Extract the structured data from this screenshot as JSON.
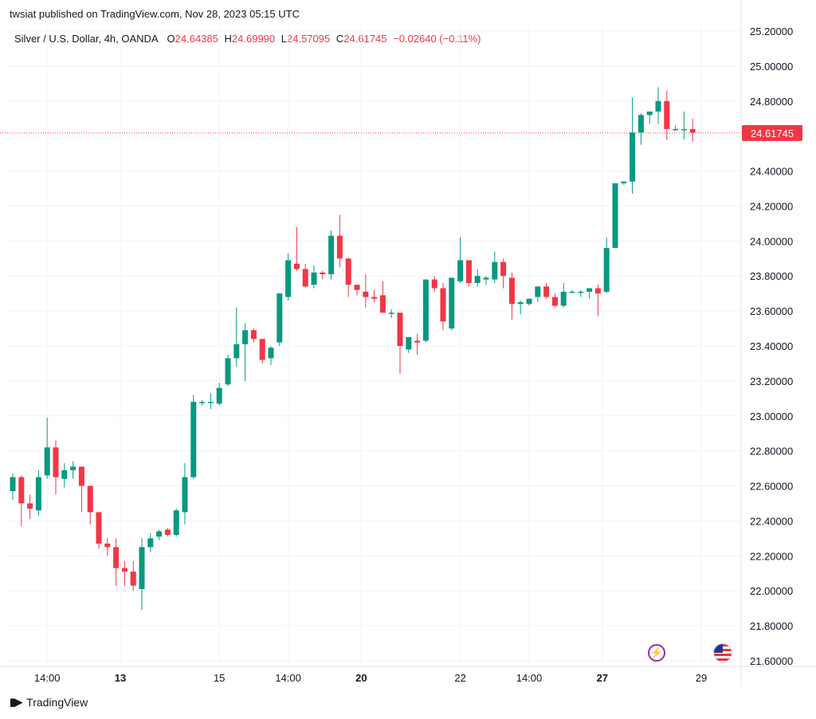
{
  "header": {
    "publisher_line": "twsiat published on TradingView.com, Nov 28, 2023 05:15 UTC"
  },
  "legend": {
    "symbol": "Silver / U.S. Dollar, 4h, OANDA",
    "o_label": "O",
    "o_value": "24.64385",
    "h_label": "H",
    "h_value": "24.69990",
    "l_label": "L",
    "l_value": "24.57095",
    "c_label": "C",
    "c_value": "24.61745",
    "change": "−0.02640 (−0.11%)"
  },
  "last_price": "24.61745",
  "footer": {
    "brand": "TradingView"
  },
  "colors": {
    "up": "#089981",
    "down": "#f23645",
    "grid": "#f0f3fa",
    "text": "#131722"
  },
  "icons": [
    "lightning-icon",
    "us-flag-icon",
    "tradingview-logo-icon"
  ],
  "chart_data": {
    "type": "candlestick",
    "title": "Silver / U.S. Dollar, 4h, OANDA",
    "ylim": [
      21.6,
      25.2
    ],
    "y_ticks": [
      "25.20000",
      "25.00000",
      "24.80000",
      "24.60000",
      "24.40000",
      "24.20000",
      "24.00000",
      "23.80000",
      "23.60000",
      "23.40000",
      "23.20000",
      "23.00000",
      "22.80000",
      "22.60000",
      "22.40000",
      "22.20000",
      "22.00000",
      "21.80000",
      "21.60000"
    ],
    "x_ticks": [
      {
        "label": "14:00",
        "bold": false,
        "index": 4
      },
      {
        "label": "13",
        "bold": true,
        "index": 12.5
      },
      {
        "label": "15",
        "bold": false,
        "index": 24
      },
      {
        "label": "14:00",
        "bold": false,
        "index": 32
      },
      {
        "label": "20",
        "bold": true,
        "index": 40.5
      },
      {
        "label": "22",
        "bold": false,
        "index": 52
      },
      {
        "label": "14:00",
        "bold": false,
        "index": 60
      },
      {
        "label": "27",
        "bold": true,
        "index": 68.5
      },
      {
        "label": "29",
        "bold": false,
        "index": 80
      }
    ],
    "candles": [
      [
        22.57,
        22.67,
        22.52,
        22.65
      ],
      [
        22.65,
        22.66,
        22.37,
        22.5
      ],
      [
        22.5,
        22.55,
        22.41,
        22.47
      ],
      [
        22.46,
        22.69,
        22.43,
        22.65
      ],
      [
        22.66,
        22.99,
        22.64,
        22.82
      ],
      [
        22.82,
        22.86,
        22.55,
        22.65
      ],
      [
        22.64,
        22.73,
        22.59,
        22.69
      ],
      [
        22.69,
        22.74,
        22.64,
        22.71
      ],
      [
        22.71,
        22.71,
        22.45,
        22.6
      ],
      [
        22.6,
        22.6,
        22.38,
        22.45
      ],
      [
        22.45,
        22.45,
        22.24,
        22.27
      ],
      [
        22.27,
        22.3,
        22.2,
        22.25
      ],
      [
        22.25,
        22.3,
        22.03,
        22.13
      ],
      [
        22.13,
        22.17,
        22.03,
        22.11
      ],
      [
        22.11,
        22.17,
        22.0,
        22.03
      ],
      [
        22.01,
        22.3,
        21.89,
        22.25
      ],
      [
        22.25,
        22.33,
        22.22,
        22.3
      ],
      [
        22.31,
        22.35,
        22.29,
        22.34
      ],
      [
        22.35,
        22.36,
        22.31,
        22.32
      ],
      [
        22.32,
        22.47,
        22.31,
        22.46
      ],
      [
        22.45,
        22.73,
        22.38,
        22.65
      ],
      [
        22.65,
        23.12,
        22.64,
        23.08
      ],
      [
        23.08,
        23.09,
        23.06,
        23.08
      ],
      [
        23.08,
        23.13,
        23.04,
        23.08
      ],
      [
        23.07,
        23.19,
        23.06,
        23.16
      ],
      [
        23.18,
        23.35,
        23.17,
        23.33
      ],
      [
        23.33,
        23.62,
        23.28,
        23.41
      ],
      [
        23.41,
        23.53,
        23.2,
        23.49
      ],
      [
        23.49,
        23.5,
        23.42,
        23.44
      ],
      [
        23.44,
        23.44,
        23.3,
        23.32
      ],
      [
        23.33,
        23.4,
        23.29,
        23.39
      ],
      [
        23.42,
        23.7,
        23.4,
        23.7
      ],
      [
        23.68,
        23.93,
        23.66,
        23.89
      ],
      [
        23.87,
        24.08,
        23.83,
        23.84
      ],
      [
        23.84,
        23.87,
        23.73,
        23.74
      ],
      [
        23.75,
        23.86,
        23.73,
        23.82
      ],
      [
        23.82,
        23.83,
        23.78,
        23.81
      ],
      [
        23.81,
        24.06,
        23.78,
        24.03
      ],
      [
        24.03,
        24.15,
        23.85,
        23.9
      ],
      [
        23.9,
        23.9,
        23.68,
        23.75
      ],
      [
        23.75,
        23.75,
        23.69,
        23.72
      ],
      [
        23.71,
        23.81,
        23.62,
        23.68
      ],
      [
        23.68,
        23.72,
        23.65,
        23.67
      ],
      [
        23.69,
        23.77,
        23.59,
        23.59
      ],
      [
        23.59,
        23.61,
        23.56,
        23.59
      ],
      [
        23.59,
        23.59,
        23.24,
        23.4
      ],
      [
        23.38,
        23.42,
        23.36,
        23.45
      ],
      [
        23.43,
        23.47,
        23.35,
        23.42
      ],
      [
        23.43,
        23.78,
        23.42,
        23.78
      ],
      [
        23.78,
        23.8,
        23.71,
        23.73
      ],
      [
        23.73,
        23.76,
        23.49,
        23.54
      ],
      [
        23.5,
        23.79,
        23.49,
        23.79
      ],
      [
        23.77,
        24.02,
        23.76,
        23.89
      ],
      [
        23.89,
        23.89,
        23.74,
        23.76
      ],
      [
        23.76,
        23.84,
        23.74,
        23.8
      ],
      [
        23.78,
        23.8,
        23.75,
        23.79
      ],
      [
        23.78,
        23.94,
        23.76,
        23.88
      ],
      [
        23.88,
        23.9,
        23.73,
        23.8
      ],
      [
        23.79,
        23.82,
        23.55,
        23.64
      ],
      [
        23.64,
        23.66,
        23.58,
        23.65
      ],
      [
        23.64,
        23.67,
        23.63,
        23.67
      ],
      [
        23.68,
        23.74,
        23.65,
        23.74
      ],
      [
        23.74,
        23.76,
        23.67,
        23.68
      ],
      [
        23.68,
        23.7,
        23.62,
        23.63
      ],
      [
        23.63,
        23.76,
        23.62,
        23.71
      ],
      [
        23.71,
        23.72,
        23.71,
        23.71
      ],
      [
        23.71,
        23.72,
        23.68,
        23.71
      ],
      [
        23.71,
        23.73,
        23.67,
        23.73
      ],
      [
        23.73,
        23.75,
        23.57,
        23.7
      ],
      [
        23.71,
        24.02,
        23.7,
        23.96
      ],
      [
        23.96,
        24.33,
        23.96,
        24.33
      ],
      [
        24.33,
        24.34,
        24.32,
        24.34
      ],
      [
        24.34,
        24.82,
        24.27,
        24.62
      ],
      [
        24.62,
        24.73,
        24.55,
        24.72
      ],
      [
        24.72,
        24.74,
        24.67,
        24.74
      ],
      [
        24.74,
        24.88,
        24.67,
        24.8
      ],
      [
        24.8,
        24.86,
        24.58,
        24.64
      ],
      [
        24.64,
        24.66,
        24.63,
        24.64
      ],
      [
        24.64,
        24.74,
        24.58,
        24.64
      ],
      [
        24.64,
        24.7,
        24.57,
        24.62
      ]
    ]
  }
}
